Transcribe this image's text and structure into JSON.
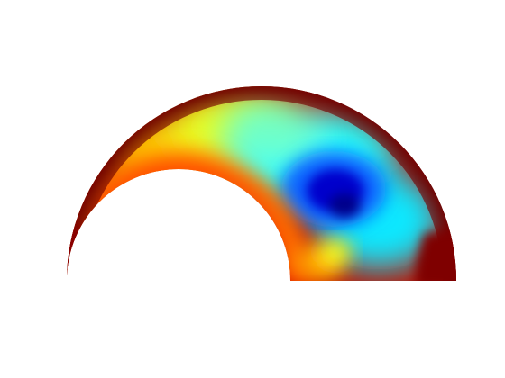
{
  "figure": {
    "kind": "colored semicircular annulus (finite-element style color field)",
    "colormap": "jet",
    "colorbar": "none",
    "axes": "hidden",
    "colors": {
      "background": "#ffffff",
      "dark_red": "#7f0000",
      "red": "#c00000",
      "orange": "#ff7a00",
      "yellow": "#f0ff10",
      "cyan": "#00ffff",
      "light_blue": "#34c8ff",
      "blue": "#0040ff",
      "dark_blue": "#00008b"
    }
  }
}
